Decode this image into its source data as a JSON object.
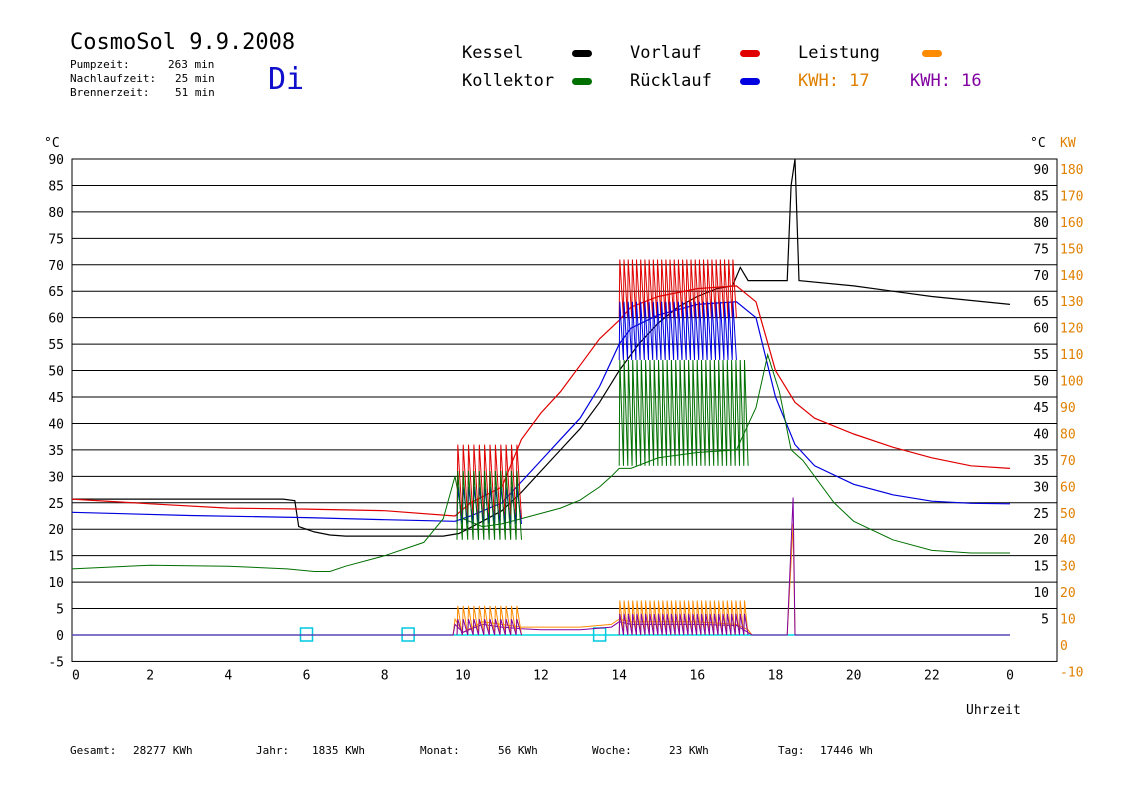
{
  "header": {
    "title": "CosmoSol 9.9.2008",
    "weekday": "Di",
    "stats": [
      {
        "label": "Pumpzeit:",
        "value": "263 min"
      },
      {
        "label": "Nachlaufzeit:",
        "value": "25 min"
      },
      {
        "label": "Brennerzeit:",
        "value": "51 min"
      }
    ]
  },
  "legend": {
    "items": [
      {
        "label": "Kessel",
        "color": "#000000"
      },
      {
        "label": "Vorlauf",
        "color": "#e00000"
      },
      {
        "label": "Leistung",
        "color": "#ff8c00"
      },
      {
        "label": "Kollektor",
        "color": "#007000"
      },
      {
        "label": "Rücklauf",
        "color": "#0000e0"
      }
    ],
    "kwh_orange": "KWH: 17",
    "kwh_purple": "KWH: 16",
    "kwh_orange_color": "#e08000",
    "kwh_purple_color": "#8000a0"
  },
  "footer": {
    "gesamt_label": "Gesamt:",
    "gesamt_value": "28277 KWh",
    "jahr_label": "Jahr:",
    "jahr_value": "1835 KWh",
    "monat_label": "Monat:",
    "monat_value": "56 KWh",
    "woche_label": "Woche:",
    "woche_value": "23 KWh",
    "tag_label": "Tag:",
    "tag_value": "17446 Wh"
  },
  "chart_data": {
    "type": "line",
    "xlabel": "Uhrzeit",
    "ylabel_left": "°C",
    "ylabel_right_temp": "°C",
    "ylabel_right_power": "KW",
    "xlim": [
      0,
      24
    ],
    "ylim": [
      -5,
      90
    ],
    "x_ticks": [
      "0",
      "2",
      "4",
      "6",
      "8",
      "10",
      "12",
      "14",
      "16",
      "18",
      "20",
      "22",
      "0"
    ],
    "y_ticks_left": [
      "90",
      "85",
      "80",
      "75",
      "70",
      "65",
      "60",
      "55",
      "50",
      "45",
      "40",
      "35",
      "30",
      "25",
      "20",
      "15",
      "10",
      "5",
      "0",
      "-5"
    ],
    "y_ticks_right_temp": [
      "90",
      "85",
      "80",
      "75",
      "70",
      "65",
      "60",
      "55",
      "50",
      "45",
      "40",
      "35",
      "30",
      "25",
      "20",
      "15",
      "10",
      "5"
    ],
    "y_ticks_right_power": [
      "180",
      "170",
      "160",
      "150",
      "140",
      "130",
      "120",
      "110",
      "100",
      "90",
      "80",
      "70",
      "60",
      "50",
      "40",
      "30",
      "20",
      "10",
      "0",
      "-10"
    ],
    "grid": true,
    "series": [
      {
        "name": "Kessel",
        "color": "#000000",
        "width": 1.2,
        "points": [
          [
            0,
            25.7
          ],
          [
            5.4,
            25.7
          ],
          [
            5.7,
            25.4
          ],
          [
            5.8,
            20.5
          ],
          [
            6.2,
            19.5
          ],
          [
            6.6,
            18.9
          ],
          [
            7,
            18.7
          ],
          [
            8,
            18.7
          ],
          [
            9.5,
            18.7
          ],
          [
            9.9,
            19.2
          ],
          [
            10.5,
            21.5
          ],
          [
            11,
            23.5
          ],
          [
            11.5,
            27
          ],
          [
            12,
            31
          ],
          [
            12.5,
            35
          ],
          [
            13,
            39
          ],
          [
            13.5,
            44
          ],
          [
            14,
            50
          ],
          [
            14.5,
            55
          ],
          [
            15,
            59
          ],
          [
            15.5,
            62
          ],
          [
            16,
            64
          ],
          [
            16.5,
            65.5
          ],
          [
            16.9,
            66
          ],
          [
            17.1,
            69.5
          ],
          [
            17.3,
            67
          ],
          [
            18.2,
            67
          ],
          [
            18.3,
            67
          ],
          [
            18.4,
            85
          ],
          [
            18.5,
            90
          ],
          [
            18.6,
            67
          ],
          [
            20,
            66
          ],
          [
            22,
            64
          ],
          [
            24,
            62.5
          ]
        ]
      },
      {
        "name": "Vorlauf",
        "color": "#e00000",
        "width": 1.2,
        "points": [
          [
            0,
            25.7
          ],
          [
            2,
            24.8
          ],
          [
            4,
            24
          ],
          [
            6,
            23.8
          ],
          [
            8,
            23.5
          ],
          [
            9.8,
            22.5
          ],
          [
            10.2,
            25
          ],
          [
            11,
            28
          ],
          [
            11.5,
            37
          ],
          [
            12,
            42
          ],
          [
            12.5,
            46
          ],
          [
            13,
            51
          ],
          [
            13.5,
            56
          ],
          [
            14,
            59.5
          ],
          [
            14.3,
            62
          ],
          [
            15,
            64
          ],
          [
            16,
            65.5
          ],
          [
            17,
            66
          ],
          [
            17.5,
            63
          ],
          [
            18,
            50
          ],
          [
            18.5,
            44
          ],
          [
            19,
            41
          ],
          [
            20,
            38
          ],
          [
            21,
            35.5
          ],
          [
            22,
            33.5
          ],
          [
            23,
            32
          ],
          [
            24,
            31.5
          ]
        ]
      },
      {
        "name": "Rücklauf",
        "color": "#0000e0",
        "width": 1.2,
        "points": [
          [
            0,
            23.2
          ],
          [
            3,
            22.6
          ],
          [
            6,
            22.2
          ],
          [
            8,
            21.8
          ],
          [
            9.8,
            21.5
          ],
          [
            10.2,
            22.5
          ],
          [
            11,
            25
          ],
          [
            11.5,
            29
          ],
          [
            12,
            33
          ],
          [
            12.5,
            37
          ],
          [
            13,
            41
          ],
          [
            13.5,
            47
          ],
          [
            14,
            55
          ],
          [
            14.3,
            58
          ],
          [
            15,
            60.5
          ],
          [
            16,
            62.5
          ],
          [
            17,
            63
          ],
          [
            17.5,
            60
          ],
          [
            18,
            45
          ],
          [
            18.5,
            36
          ],
          [
            19,
            32
          ],
          [
            20,
            28.5
          ],
          [
            21,
            26.5
          ],
          [
            22,
            25.3
          ],
          [
            23,
            24.9
          ],
          [
            24,
            24.8
          ]
        ]
      },
      {
        "name": "Kollektor",
        "color": "#007000",
        "width": 1.0,
        "points": [
          [
            0,
            12.5
          ],
          [
            2,
            13.2
          ],
          [
            4,
            13
          ],
          [
            5.5,
            12.5
          ],
          [
            6.2,
            12
          ],
          [
            6.6,
            12
          ],
          [
            7,
            13
          ],
          [
            8,
            15
          ],
          [
            9,
            17.5
          ],
          [
            9.5,
            22
          ],
          [
            9.8,
            30
          ],
          [
            10,
            22
          ],
          [
            10.5,
            20.5
          ],
          [
            11,
            21
          ],
          [
            11.5,
            22
          ],
          [
            12,
            23
          ],
          [
            12.5,
            24
          ],
          [
            13,
            25.5
          ],
          [
            13.5,
            28
          ],
          [
            13.8,
            30
          ],
          [
            14,
            31.5
          ],
          [
            14.3,
            31.5
          ],
          [
            15,
            33.5
          ],
          [
            16,
            34.5
          ],
          [
            17,
            35
          ],
          [
            17.5,
            43
          ],
          [
            17.8,
            53
          ],
          [
            18.1,
            46
          ],
          [
            18.4,
            35
          ],
          [
            18.7,
            33
          ],
          [
            19.5,
            25
          ],
          [
            20,
            21.5
          ],
          [
            21,
            18
          ],
          [
            22,
            16
          ],
          [
            23,
            15.5
          ],
          [
            24,
            15.5
          ]
        ]
      },
      {
        "name": "Leistung",
        "color": "#ff8c00",
        "width": 1.0,
        "points": [
          [
            0,
            0
          ],
          [
            9.75,
            0
          ],
          [
            9.8,
            3
          ],
          [
            10,
            0.5
          ],
          [
            10.5,
            2.5
          ],
          [
            11,
            2
          ],
          [
            11.5,
            1.5
          ],
          [
            12,
            1.5
          ],
          [
            13,
            1.5
          ],
          [
            13.8,
            2
          ],
          [
            14,
            3
          ],
          [
            14.3,
            2.5
          ],
          [
            15,
            2.5
          ],
          [
            16,
            2.5
          ],
          [
            17,
            2
          ],
          [
            17.3,
            1
          ],
          [
            17.4,
            0
          ],
          [
            18.3,
            0
          ],
          [
            18.45,
            21
          ],
          [
            18.5,
            0
          ],
          [
            24,
            0
          ]
        ]
      },
      {
        "name": "Pumpe",
        "color": "#8000a0",
        "width": 1.0,
        "points": [
          [
            0,
            0
          ],
          [
            9.75,
            0
          ],
          [
            9.8,
            2
          ],
          [
            10,
            0.5
          ],
          [
            10.5,
            2
          ],
          [
            11,
            1.5
          ],
          [
            11.5,
            1.2
          ],
          [
            12,
            1
          ],
          [
            13,
            1
          ],
          [
            13.8,
            1.5
          ],
          [
            14,
            2.5
          ],
          [
            14.3,
            2
          ],
          [
            15,
            2
          ],
          [
            16,
            2
          ],
          [
            17,
            1.8
          ],
          [
            17.3,
            0.5
          ],
          [
            17.4,
            0
          ],
          [
            18.3,
            0
          ],
          [
            18.45,
            26
          ],
          [
            18.5,
            0
          ],
          [
            24,
            0
          ]
        ]
      }
    ],
    "spikes": [
      {
        "name": "Vorlauf",
        "color": "#e00000",
        "x_start": 9.85,
        "x_end": 11.5,
        "count": 12,
        "min": 22,
        "max": 36
      },
      {
        "name": "Rücklauf",
        "color": "#0000e0",
        "x_start": 9.85,
        "x_end": 11.5,
        "count": 12,
        "min": 21,
        "max": 28
      },
      {
        "name": "Kollektor",
        "color": "#007000",
        "x_start": 9.85,
        "x_end": 11.5,
        "count": 12,
        "min": 18,
        "max": 31
      },
      {
        "name": "Vorlauf",
        "color": "#e00000",
        "x_start": 14.0,
        "x_end": 17.0,
        "count": 28,
        "min": 60,
        "max": 71
      },
      {
        "name": "Rücklauf",
        "color": "#0000e0",
        "x_start": 14.0,
        "x_end": 17.0,
        "count": 28,
        "min": 52,
        "max": 63
      },
      {
        "name": "Kollektor",
        "color": "#007000",
        "x_start": 14.0,
        "x_end": 17.3,
        "count": 30,
        "min": 32,
        "max": 52
      },
      {
        "name": "Leistung",
        "color": "#ff8c00",
        "x_start": 9.85,
        "x_end": 11.5,
        "count": 12,
        "min": 0,
        "max": 5.5
      },
      {
        "name": "Leistung",
        "color": "#ff8c00",
        "x_start": 14.0,
        "x_end": 17.3,
        "count": 30,
        "min": 0,
        "max": 6.5
      },
      {
        "name": "Pumpe",
        "color": "#8000a0",
        "x_start": 9.85,
        "x_end": 11.5,
        "count": 12,
        "min": 0,
        "max": 3
      },
      {
        "name": "Pumpe",
        "color": "#8000a0",
        "x_start": 14.0,
        "x_end": 17.3,
        "count": 30,
        "min": 0,
        "max": 4
      }
    ],
    "pump_markers": [
      6.0,
      8.6,
      13.5
    ]
  }
}
